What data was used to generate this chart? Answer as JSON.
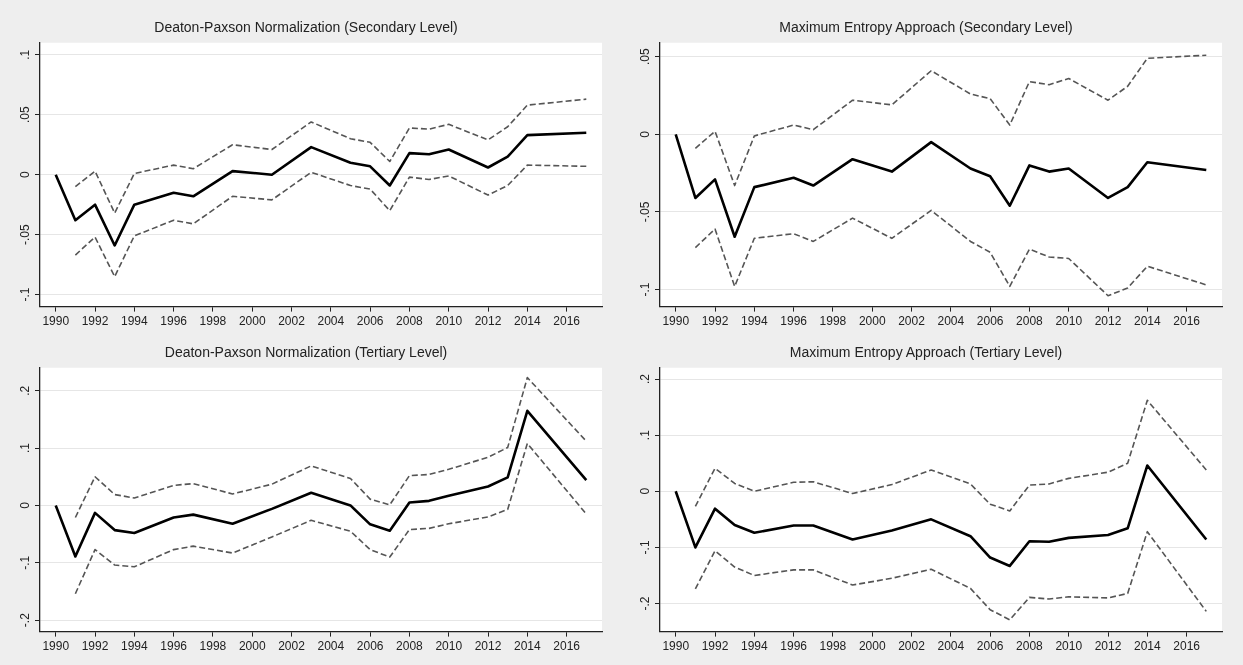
{
  "chart_data": [
    {
      "type": "line",
      "title": "Deaton-Paxson Normalization (Secondary Level)",
      "x": [
        1990,
        1991,
        1992,
        1993,
        1994,
        1996,
        1997,
        1999,
        2001,
        2003,
        2005,
        2006,
        2007,
        2008,
        2009,
        2010,
        2012,
        2013,
        2014,
        2017
      ],
      "xlim": [
        1989.2,
        2017.8
      ],
      "xticks": [
        1990,
        1992,
        1994,
        1996,
        1998,
        2000,
        2002,
        2004,
        2006,
        2008,
        2010,
        2012,
        2014,
        2016
      ],
      "ylim": [
        -0.11,
        0.11
      ],
      "yticks": [
        {
          "value": -0.1,
          "label": "-.1"
        },
        {
          "value": -0.05,
          "label": "-.05"
        },
        {
          "value": 0,
          "label": "0"
        },
        {
          "value": 0.05,
          "label": ".05"
        },
        {
          "value": 0.1,
          "label": ".1"
        }
      ],
      "grid": "y",
      "marker": "none",
      "legend": false,
      "series": [
        {
          "color": "#000000",
          "line_style": "solid",
          "values": [
            0,
            -0.038,
            -0.025,
            -0.059,
            -0.025,
            -0.015,
            -0.018,
            0.003,
            0,
            0.023,
            0.01,
            0.007,
            -0.009,
            0.018,
            0.017,
            0.021,
            0.006,
            0.015,
            0.033,
            0.035
          ]
        },
        {
          "color": "#555555",
          "line_style": "dashed",
          "values": [
            null,
            -0.01,
            0.003,
            -0.032,
            0.001,
            0.008,
            0.005,
            0.025,
            0.021,
            0.044,
            0.03,
            0.027,
            0.011,
            0.039,
            0.038,
            0.042,
            0.029,
            0.04,
            0.058,
            0.063
          ]
        },
        {
          "color": "#555555",
          "line_style": "dashed",
          "values": [
            null,
            -0.067,
            -0.052,
            -0.085,
            -0.051,
            -0.038,
            -0.041,
            -0.018,
            -0.021,
            0.002,
            -0.009,
            -0.012,
            -0.03,
            -0.002,
            -0.004,
            -0.001,
            -0.017,
            -0.009,
            0.008,
            0.007
          ]
        }
      ]
    },
    {
      "type": "line",
      "title": "Maximum Entropy Approach (Secondary Level)",
      "x": [
        1990,
        1991,
        1992,
        1993,
        1994,
        1996,
        1997,
        1999,
        2001,
        2003,
        2005,
        2006,
        2007,
        2008,
        2009,
        2010,
        2012,
        2013,
        2014,
        2017
      ],
      "xlim": [
        1989.2,
        2017.8
      ],
      "xticks": [
        1990,
        1992,
        1994,
        1996,
        1998,
        2000,
        2002,
        2004,
        2006,
        2008,
        2010,
        2012,
        2014,
        2016
      ],
      "ylim": [
        -0.111,
        0.059
      ],
      "yticks": [
        {
          "value": -0.1,
          "label": "-.1"
        },
        {
          "value": -0.05,
          "label": "-.05"
        },
        {
          "value": 0,
          "label": "0"
        },
        {
          "value": 0.05,
          "label": ".05"
        }
      ],
      "grid": "y",
      "marker": "none",
      "legend": false,
      "series": [
        {
          "color": "#000000",
          "line_style": "solid",
          "values": [
            0,
            -0.041,
            -0.029,
            -0.066,
            -0.034,
            -0.028,
            -0.033,
            -0.016,
            -0.024,
            -0.005,
            -0.022,
            -0.027,
            -0.046,
            -0.02,
            -0.024,
            -0.022,
            -0.041,
            -0.034,
            -0.018,
            -0.023
          ]
        },
        {
          "color": "#555555",
          "line_style": "dashed",
          "values": [
            null,
            -0.009,
            0.002,
            -0.033,
            -0.001,
            0.006,
            0.003,
            0.022,
            0.019,
            0.041,
            0.026,
            0.023,
            0.006,
            0.034,
            0.032,
            0.036,
            0.022,
            0.031,
            0.049,
            0.051
          ]
        },
        {
          "color": "#555555",
          "line_style": "dashed",
          "values": [
            null,
            -0.073,
            -0.061,
            -0.098,
            -0.067,
            -0.064,
            -0.069,
            -0.054,
            -0.067,
            -0.049,
            -0.069,
            -0.076,
            -0.098,
            -0.074,
            -0.079,
            -0.08,
            -0.104,
            -0.099,
            -0.085,
            -0.097
          ]
        }
      ]
    },
    {
      "type": "line",
      "title": "Deaton-Paxson Normalization (Tertiary Level)",
      "x": [
        1990,
        1991,
        1992,
        1993,
        1994,
        1996,
        1997,
        1999,
        2001,
        2003,
        2005,
        2006,
        2007,
        2008,
        2009,
        2010,
        2012,
        2013,
        2014,
        2017
      ],
      "xlim": [
        1989.2,
        2017.8
      ],
      "xticks": [
        1990,
        1992,
        1994,
        1996,
        1998,
        2000,
        2002,
        2004,
        2006,
        2008,
        2010,
        2012,
        2014,
        2016
      ],
      "ylim": [
        -0.22,
        0.24
      ],
      "yticks": [
        {
          "value": -0.2,
          "label": "-.2"
        },
        {
          "value": -0.1,
          "label": "-.1"
        },
        {
          "value": 0,
          "label": "0"
        },
        {
          "value": 0.1,
          "label": ".1"
        },
        {
          "value": 0.2,
          "label": ".2"
        }
      ],
      "grid": "y",
      "marker": "none",
      "legend": false,
      "series": [
        {
          "color": "#000000",
          "line_style": "solid",
          "values": [
            0,
            -0.089,
            -0.013,
            -0.043,
            -0.048,
            -0.021,
            -0.016,
            -0.032,
            -0.006,
            0.022,
            0,
            -0.033,
            -0.044,
            0.005,
            0.008,
            0.017,
            0.033,
            0.049,
            0.165,
            0.044
          ]
        },
        {
          "color": "#555555",
          "line_style": "dashed",
          "values": [
            null,
            -0.021,
            0.05,
            0.019,
            0.013,
            0.035,
            0.038,
            0.02,
            0.037,
            0.069,
            0.047,
            0.011,
            0.001,
            0.052,
            0.054,
            0.063,
            0.084,
            0.101,
            0.223,
            0.112
          ]
        },
        {
          "color": "#555555",
          "line_style": "dashed",
          "values": [
            null,
            -0.154,
            -0.077,
            -0.104,
            -0.107,
            -0.077,
            -0.071,
            -0.083,
            -0.055,
            -0.026,
            -0.045,
            -0.077,
            -0.09,
            -0.042,
            -0.04,
            -0.032,
            -0.02,
            -0.007,
            0.108,
            -0.015
          ]
        }
      ]
    },
    {
      "type": "line",
      "title": "Maximum Entropy Approach (Tertiary Level)",
      "x": [
        1990,
        1991,
        1992,
        1993,
        1994,
        1996,
        1997,
        1999,
        2001,
        2003,
        2005,
        2006,
        2007,
        2008,
        2009,
        2010,
        2012,
        2013,
        2014,
        2017
      ],
      "xlim": [
        1989.2,
        2017.8
      ],
      "xticks": [
        1990,
        1992,
        1994,
        1996,
        1998,
        2000,
        2002,
        2004,
        2006,
        2008,
        2010,
        2012,
        2014,
        2016
      ],
      "ylim": [
        -0.25,
        0.22
      ],
      "yticks": [
        {
          "value": -0.2,
          "label": "-.2"
        },
        {
          "value": -0.1,
          "label": "-.1"
        },
        {
          "value": 0,
          "label": "0"
        },
        {
          "value": 0.1,
          "label": ".1"
        },
        {
          "value": 0.2,
          "label": ".2"
        }
      ],
      "grid": "y",
      "marker": "none",
      "legend": false,
      "series": [
        {
          "color": "#000000",
          "line_style": "solid",
          "values": [
            0,
            -0.1,
            -0.031,
            -0.06,
            -0.074,
            -0.061,
            -0.061,
            -0.086,
            -0.07,
            -0.05,
            -0.08,
            -0.118,
            -0.133,
            -0.089,
            -0.09,
            -0.083,
            -0.078,
            -0.066,
            0.046,
            -0.086
          ]
        },
        {
          "color": "#555555",
          "line_style": "dashed",
          "values": [
            null,
            -0.027,
            0.041,
            0.014,
            0,
            0.016,
            0.017,
            -0.004,
            0.012,
            0.038,
            0.013,
            -0.023,
            -0.035,
            0.011,
            0.013,
            0.023,
            0.034,
            0.05,
            0.162,
            0.038
          ]
        },
        {
          "color": "#555555",
          "line_style": "dashed",
          "values": [
            null,
            -0.174,
            -0.106,
            -0.135,
            -0.15,
            -0.14,
            -0.14,
            -0.167,
            -0.155,
            -0.139,
            -0.173,
            -0.211,
            -0.229,
            -0.189,
            -0.192,
            -0.188,
            -0.19,
            -0.182,
            -0.072,
            -0.214
          ]
        }
      ]
    }
  ]
}
